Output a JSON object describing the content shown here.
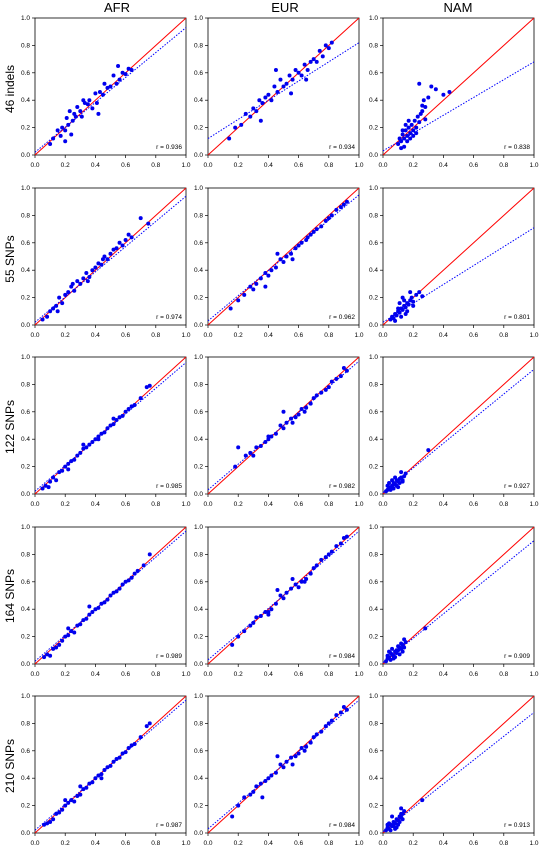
{
  "columns": [
    "AFR",
    "EUR",
    "NAM"
  ],
  "rows": [
    "46 indels",
    "55 SNPs",
    "122 SNPs",
    "164 SNPs",
    "210 SNPs"
  ],
  "colors": {
    "points": "#0000ee",
    "identity_line": "#ff0000",
    "fit_line": "#0000ff",
    "axis": "#000000"
  },
  "axis_ticks": [
    "0.0",
    "0.2",
    "0.4",
    "0.6",
    "0.8",
    "1.0"
  ],
  "chart_data": [
    {
      "type": "scatter",
      "row": "46 indels",
      "column": "AFR",
      "r_label": "r = 0.936",
      "xlim": [
        0,
        1
      ],
      "ylim": [
        0,
        1
      ],
      "fit": [
        0.02,
        0.93
      ],
      "x": [
        0.1,
        0.12,
        0.15,
        0.17,
        0.18,
        0.2,
        0.21,
        0.22,
        0.23,
        0.25,
        0.26,
        0.27,
        0.28,
        0.3,
        0.31,
        0.33,
        0.35,
        0.36,
        0.38,
        0.4,
        0.41,
        0.43,
        0.45,
        0.46,
        0.48,
        0.5,
        0.52,
        0.54,
        0.56,
        0.58,
        0.6,
        0.62,
        0.64,
        0.2,
        0.24,
        0.32,
        0.42,
        0.55
      ],
      "y": [
        0.08,
        0.12,
        0.18,
        0.14,
        0.2,
        0.18,
        0.27,
        0.22,
        0.32,
        0.25,
        0.3,
        0.28,
        0.35,
        0.32,
        0.28,
        0.38,
        0.37,
        0.4,
        0.34,
        0.45,
        0.38,
        0.46,
        0.44,
        0.52,
        0.49,
        0.5,
        0.58,
        0.52,
        0.55,
        0.6,
        0.59,
        0.63,
        0.62,
        0.1,
        0.15,
        0.4,
        0.3,
        0.65
      ]
    },
    {
      "type": "scatter",
      "row": "46 indels",
      "column": "EUR",
      "r_label": "r = 0.934",
      "xlim": [
        0,
        1
      ],
      "ylim": [
        0,
        1
      ],
      "fit": [
        0.12,
        0.82
      ],
      "x": [
        0.14,
        0.18,
        0.22,
        0.25,
        0.28,
        0.3,
        0.32,
        0.34,
        0.36,
        0.38,
        0.4,
        0.42,
        0.44,
        0.46,
        0.48,
        0.5,
        0.52,
        0.54,
        0.56,
        0.58,
        0.6,
        0.62,
        0.64,
        0.66,
        0.68,
        0.7,
        0.72,
        0.74,
        0.76,
        0.78,
        0.8,
        0.82,
        0.35,
        0.45,
        0.55,
        0.65
      ],
      "y": [
        0.12,
        0.2,
        0.22,
        0.3,
        0.28,
        0.34,
        0.32,
        0.4,
        0.38,
        0.42,
        0.44,
        0.4,
        0.5,
        0.46,
        0.55,
        0.5,
        0.52,
        0.58,
        0.55,
        0.62,
        0.6,
        0.58,
        0.66,
        0.62,
        0.68,
        0.7,
        0.68,
        0.76,
        0.72,
        0.8,
        0.78,
        0.82,
        0.25,
        0.62,
        0.45,
        0.55
      ]
    },
    {
      "type": "scatter",
      "row": "46 indels",
      "column": "NAM",
      "r_label": "r = 0.838",
      "xlim": [
        0,
        1
      ],
      "ylim": [
        0,
        1
      ],
      "fit": [
        0.03,
        0.68
      ],
      "x": [
        0.1,
        0.11,
        0.12,
        0.13,
        0.14,
        0.15,
        0.16,
        0.17,
        0.18,
        0.19,
        0.2,
        0.21,
        0.22,
        0.23,
        0.24,
        0.25,
        0.26,
        0.27,
        0.28,
        0.3,
        0.32,
        0.35,
        0.4,
        0.44,
        0.12,
        0.14,
        0.16,
        0.18,
        0.2,
        0.22,
        0.24,
        0.26,
        0.28,
        0.15,
        0.13,
        0.17
      ],
      "y": [
        0.08,
        0.12,
        0.1,
        0.15,
        0.12,
        0.18,
        0.14,
        0.2,
        0.16,
        0.22,
        0.18,
        0.25,
        0.2,
        0.28,
        0.24,
        0.3,
        0.36,
        0.4,
        0.35,
        0.42,
        0.5,
        0.48,
        0.44,
        0.46,
        0.05,
        0.06,
        0.1,
        0.12,
        0.14,
        0.16,
        0.52,
        0.32,
        0.26,
        0.22,
        0.18,
        0.25
      ]
    },
    {
      "type": "scatter",
      "row": "55 SNPs",
      "column": "AFR",
      "r_label": "r = 0.974",
      "xlim": [
        0,
        1
      ],
      "ylim": [
        0,
        1
      ],
      "fit": [
        0.02,
        0.94
      ],
      "x": [
        0.05,
        0.08,
        0.1,
        0.12,
        0.14,
        0.16,
        0.18,
        0.2,
        0.22,
        0.24,
        0.26,
        0.28,
        0.3,
        0.32,
        0.34,
        0.36,
        0.38,
        0.4,
        0.42,
        0.44,
        0.46,
        0.48,
        0.5,
        0.52,
        0.54,
        0.56,
        0.58,
        0.6,
        0.62,
        0.64,
        0.7,
        0.75,
        0.15,
        0.25,
        0.35,
        0.45
      ],
      "y": [
        0.04,
        0.06,
        0.1,
        0.12,
        0.14,
        0.2,
        0.16,
        0.22,
        0.24,
        0.28,
        0.25,
        0.32,
        0.3,
        0.34,
        0.38,
        0.35,
        0.4,
        0.42,
        0.45,
        0.44,
        0.5,
        0.48,
        0.52,
        0.55,
        0.56,
        0.6,
        0.58,
        0.62,
        0.66,
        0.64,
        0.78,
        0.74,
        0.1,
        0.3,
        0.32,
        0.48
      ]
    },
    {
      "type": "scatter",
      "row": "55 SNPs",
      "column": "EUR",
      "r_label": "r = 0.962",
      "xlim": [
        0,
        1
      ],
      "ylim": [
        0,
        1
      ],
      "fit": [
        0.03,
        0.95
      ],
      "x": [
        0.15,
        0.2,
        0.24,
        0.28,
        0.3,
        0.32,
        0.35,
        0.38,
        0.4,
        0.42,
        0.45,
        0.48,
        0.5,
        0.52,
        0.55,
        0.58,
        0.6,
        0.62,
        0.65,
        0.68,
        0.7,
        0.72,
        0.75,
        0.78,
        0.8,
        0.82,
        0.85,
        0.88,
        0.9,
        0.92,
        0.38,
        0.46,
        0.56,
        0.66
      ],
      "y": [
        0.12,
        0.18,
        0.22,
        0.28,
        0.26,
        0.3,
        0.34,
        0.38,
        0.36,
        0.4,
        0.42,
        0.48,
        0.46,
        0.5,
        0.52,
        0.56,
        0.58,
        0.6,
        0.62,
        0.66,
        0.68,
        0.7,
        0.72,
        0.76,
        0.78,
        0.8,
        0.84,
        0.86,
        0.88,
        0.9,
        0.28,
        0.52,
        0.48,
        0.64
      ]
    },
    {
      "type": "scatter",
      "row": "55 SNPs",
      "column": "NAM",
      "r_label": "r = 0.801",
      "xlim": [
        0,
        1
      ],
      "ylim": [
        0,
        1
      ],
      "fit": [
        0.02,
        0.71
      ],
      "x": [
        0.05,
        0.06,
        0.07,
        0.08,
        0.09,
        0.1,
        0.11,
        0.12,
        0.13,
        0.14,
        0.15,
        0.16,
        0.17,
        0.18,
        0.19,
        0.2,
        0.22,
        0.24,
        0.26,
        0.08,
        0.1,
        0.12,
        0.14,
        0.16,
        0.18,
        0.2,
        0.11,
        0.13,
        0.15
      ],
      "y": [
        0.04,
        0.06,
        0.05,
        0.08,
        0.07,
        0.1,
        0.09,
        0.12,
        0.11,
        0.14,
        0.13,
        0.16,
        0.15,
        0.18,
        0.2,
        0.17,
        0.22,
        0.24,
        0.21,
        0.03,
        0.12,
        0.06,
        0.18,
        0.1,
        0.24,
        0.14,
        0.16,
        0.2,
        0.08
      ]
    },
    {
      "type": "scatter",
      "row": "122 SNPs",
      "column": "AFR",
      "r_label": "r = 0.985",
      "xlim": [
        0,
        1
      ],
      "ylim": [
        0,
        1
      ],
      "fit": [
        0.02,
        0.96
      ],
      "x": [
        0.05,
        0.07,
        0.09,
        0.1,
        0.12,
        0.14,
        0.16,
        0.18,
        0.2,
        0.22,
        0.24,
        0.26,
        0.28,
        0.3,
        0.32,
        0.34,
        0.36,
        0.38,
        0.4,
        0.42,
        0.44,
        0.46,
        0.48,
        0.5,
        0.52,
        0.54,
        0.56,
        0.58,
        0.6,
        0.62,
        0.64,
        0.66,
        0.7,
        0.74,
        0.76,
        0.22,
        0.32,
        0.42,
        0.52
      ],
      "y": [
        0.04,
        0.06,
        0.05,
        0.09,
        0.12,
        0.1,
        0.16,
        0.17,
        0.2,
        0.22,
        0.24,
        0.25,
        0.28,
        0.3,
        0.33,
        0.34,
        0.36,
        0.38,
        0.4,
        0.42,
        0.44,
        0.45,
        0.48,
        0.5,
        0.51,
        0.54,
        0.56,
        0.57,
        0.6,
        0.62,
        0.64,
        0.65,
        0.7,
        0.78,
        0.79,
        0.18,
        0.36,
        0.4,
        0.55
      ]
    },
    {
      "type": "scatter",
      "row": "122 SNPs",
      "column": "EUR",
      "r_label": "r = 0.982",
      "xlim": [
        0,
        1
      ],
      "ylim": [
        0,
        1
      ],
      "fit": [
        0.03,
        0.97
      ],
      "x": [
        0.18,
        0.2,
        0.25,
        0.28,
        0.3,
        0.32,
        0.35,
        0.38,
        0.4,
        0.42,
        0.45,
        0.48,
        0.5,
        0.52,
        0.55,
        0.58,
        0.6,
        0.62,
        0.65,
        0.68,
        0.7,
        0.72,
        0.75,
        0.78,
        0.8,
        0.82,
        0.85,
        0.88,
        0.9,
        0.92,
        0.4,
        0.5,
        0.56,
        0.64
      ],
      "y": [
        0.2,
        0.34,
        0.28,
        0.3,
        0.28,
        0.34,
        0.35,
        0.38,
        0.4,
        0.42,
        0.44,
        0.5,
        0.48,
        0.52,
        0.55,
        0.56,
        0.58,
        0.62,
        0.63,
        0.66,
        0.7,
        0.72,
        0.74,
        0.76,
        0.78,
        0.82,
        0.84,
        0.86,
        0.92,
        0.9,
        0.42,
        0.6,
        0.52,
        0.6
      ]
    },
    {
      "type": "scatter",
      "row": "122 SNPs",
      "column": "NAM",
      "r_label": "r = 0.927",
      "xlim": [
        0,
        1
      ],
      "ylim": [
        0,
        1
      ],
      "fit": [
        0.01,
        0.91
      ],
      "x": [
        0.02,
        0.03,
        0.04,
        0.05,
        0.06,
        0.07,
        0.08,
        0.09,
        0.1,
        0.11,
        0.12,
        0.13,
        0.14,
        0.15,
        0.03,
        0.05,
        0.07,
        0.09,
        0.11,
        0.13,
        0.06,
        0.08,
        0.1,
        0.3,
        0.04,
        0.12
      ],
      "y": [
        0.02,
        0.03,
        0.05,
        0.04,
        0.06,
        0.08,
        0.07,
        0.1,
        0.09,
        0.11,
        0.12,
        0.1,
        0.13,
        0.15,
        0.06,
        0.03,
        0.04,
        0.06,
        0.08,
        0.09,
        0.1,
        0.12,
        0.05,
        0.32,
        0.08,
        0.16
      ]
    },
    {
      "type": "scatter",
      "row": "164 SNPs",
      "column": "AFR",
      "r_label": "r = 0.989",
      "xlim": [
        0,
        1
      ],
      "ylim": [
        0,
        1
      ],
      "fit": [
        0.02,
        0.97
      ],
      "x": [
        0.06,
        0.08,
        0.1,
        0.12,
        0.14,
        0.16,
        0.18,
        0.2,
        0.22,
        0.24,
        0.26,
        0.28,
        0.3,
        0.32,
        0.34,
        0.36,
        0.38,
        0.4,
        0.42,
        0.44,
        0.46,
        0.48,
        0.5,
        0.52,
        0.54,
        0.56,
        0.58,
        0.6,
        0.62,
        0.64,
        0.66,
        0.68,
        0.72,
        0.76,
        0.22,
        0.36
      ],
      "y": [
        0.05,
        0.07,
        0.06,
        0.11,
        0.12,
        0.14,
        0.17,
        0.2,
        0.21,
        0.24,
        0.23,
        0.28,
        0.29,
        0.32,
        0.33,
        0.36,
        0.38,
        0.4,
        0.41,
        0.44,
        0.45,
        0.47,
        0.5,
        0.52,
        0.53,
        0.55,
        0.58,
        0.6,
        0.61,
        0.63,
        0.66,
        0.68,
        0.72,
        0.8,
        0.26,
        0.42
      ]
    },
    {
      "type": "scatter",
      "row": "164 SNPs",
      "column": "EUR",
      "r_label": "r = 0.984",
      "xlim": [
        0,
        1
      ],
      "ylim": [
        0,
        1
      ],
      "fit": [
        0.03,
        0.97
      ],
      "x": [
        0.16,
        0.2,
        0.24,
        0.28,
        0.3,
        0.32,
        0.35,
        0.38,
        0.4,
        0.42,
        0.45,
        0.48,
        0.5,
        0.52,
        0.55,
        0.58,
        0.6,
        0.62,
        0.65,
        0.68,
        0.7,
        0.72,
        0.75,
        0.78,
        0.8,
        0.82,
        0.85,
        0.88,
        0.9,
        0.92,
        0.4,
        0.46,
        0.56,
        0.64
      ],
      "y": [
        0.14,
        0.2,
        0.24,
        0.28,
        0.3,
        0.34,
        0.35,
        0.38,
        0.36,
        0.4,
        0.44,
        0.5,
        0.48,
        0.52,
        0.55,
        0.58,
        0.56,
        0.6,
        0.62,
        0.66,
        0.7,
        0.72,
        0.76,
        0.78,
        0.8,
        0.82,
        0.86,
        0.88,
        0.92,
        0.93,
        0.38,
        0.54,
        0.62,
        0.6
      ]
    },
    {
      "type": "scatter",
      "row": "164 SNPs",
      "column": "NAM",
      "r_label": "r = 0.909",
      "xlim": [
        0,
        1
      ],
      "ylim": [
        0,
        1
      ],
      "fit": [
        0.01,
        0.9
      ],
      "x": [
        0.02,
        0.03,
        0.04,
        0.05,
        0.06,
        0.07,
        0.08,
        0.09,
        0.1,
        0.11,
        0.12,
        0.13,
        0.14,
        0.15,
        0.03,
        0.05,
        0.07,
        0.09,
        0.11,
        0.13,
        0.06,
        0.08,
        0.1,
        0.28,
        0.04,
        0.12,
        0.14
      ],
      "y": [
        0.02,
        0.04,
        0.05,
        0.03,
        0.07,
        0.06,
        0.09,
        0.08,
        0.1,
        0.12,
        0.11,
        0.14,
        0.12,
        0.16,
        0.06,
        0.08,
        0.04,
        0.1,
        0.07,
        0.09,
        0.11,
        0.05,
        0.13,
        0.26,
        0.09,
        0.15,
        0.18
      ]
    },
    {
      "type": "scatter",
      "row": "210 SNPs",
      "column": "AFR",
      "r_label": "r = 0.987",
      "xlim": [
        0,
        1
      ],
      "ylim": [
        0,
        1
      ],
      "fit": [
        0.02,
        0.97
      ],
      "x": [
        0.06,
        0.08,
        0.1,
        0.12,
        0.14,
        0.16,
        0.18,
        0.2,
        0.22,
        0.24,
        0.26,
        0.28,
        0.3,
        0.32,
        0.34,
        0.36,
        0.38,
        0.4,
        0.42,
        0.44,
        0.46,
        0.48,
        0.5,
        0.52,
        0.54,
        0.56,
        0.58,
        0.6,
        0.62,
        0.64,
        0.66,
        0.7,
        0.74,
        0.76,
        0.2,
        0.3,
        0.44
      ],
      "y": [
        0.06,
        0.07,
        0.08,
        0.1,
        0.14,
        0.15,
        0.17,
        0.2,
        0.22,
        0.24,
        0.23,
        0.27,
        0.28,
        0.32,
        0.33,
        0.36,
        0.37,
        0.4,
        0.42,
        0.43,
        0.46,
        0.48,
        0.49,
        0.52,
        0.54,
        0.55,
        0.58,
        0.59,
        0.62,
        0.64,
        0.65,
        0.7,
        0.78,
        0.8,
        0.24,
        0.34,
        0.4
      ]
    },
    {
      "type": "scatter",
      "row": "210 SNPs",
      "column": "EUR",
      "r_label": "r = 0.984",
      "xlim": [
        0,
        1
      ],
      "ylim": [
        0,
        1
      ],
      "fit": [
        0.03,
        0.97
      ],
      "x": [
        0.16,
        0.2,
        0.24,
        0.28,
        0.3,
        0.32,
        0.35,
        0.38,
        0.4,
        0.42,
        0.45,
        0.48,
        0.5,
        0.52,
        0.55,
        0.58,
        0.6,
        0.62,
        0.65,
        0.68,
        0.7,
        0.72,
        0.75,
        0.78,
        0.8,
        0.82,
        0.85,
        0.88,
        0.9,
        0.92,
        0.36,
        0.46,
        0.56,
        0.64
      ],
      "y": [
        0.12,
        0.2,
        0.26,
        0.28,
        0.3,
        0.34,
        0.36,
        0.38,
        0.4,
        0.42,
        0.44,
        0.5,
        0.48,
        0.52,
        0.55,
        0.56,
        0.58,
        0.62,
        0.63,
        0.66,
        0.7,
        0.72,
        0.74,
        0.78,
        0.8,
        0.82,
        0.86,
        0.88,
        0.92,
        0.9,
        0.26,
        0.56,
        0.5,
        0.6
      ]
    },
    {
      "type": "scatter",
      "row": "210 SNPs",
      "column": "NAM",
      "r_label": "r = 0.913",
      "xlim": [
        0,
        1
      ],
      "ylim": [
        0,
        1
      ],
      "fit": [
        0.01,
        0.88
      ],
      "x": [
        0.02,
        0.03,
        0.04,
        0.05,
        0.06,
        0.07,
        0.08,
        0.09,
        0.1,
        0.11,
        0.12,
        0.13,
        0.14,
        0.03,
        0.05,
        0.07,
        0.09,
        0.11,
        0.13,
        0.06,
        0.08,
        0.1,
        0.26,
        0.04,
        0.12,
        0.12
      ],
      "y": [
        0.02,
        0.04,
        0.03,
        0.06,
        0.05,
        0.08,
        0.07,
        0.1,
        0.09,
        0.12,
        0.11,
        0.14,
        0.16,
        0.06,
        0.02,
        0.05,
        0.04,
        0.08,
        0.1,
        0.12,
        0.03,
        0.06,
        0.24,
        0.07,
        0.18,
        0.14
      ]
    }
  ]
}
